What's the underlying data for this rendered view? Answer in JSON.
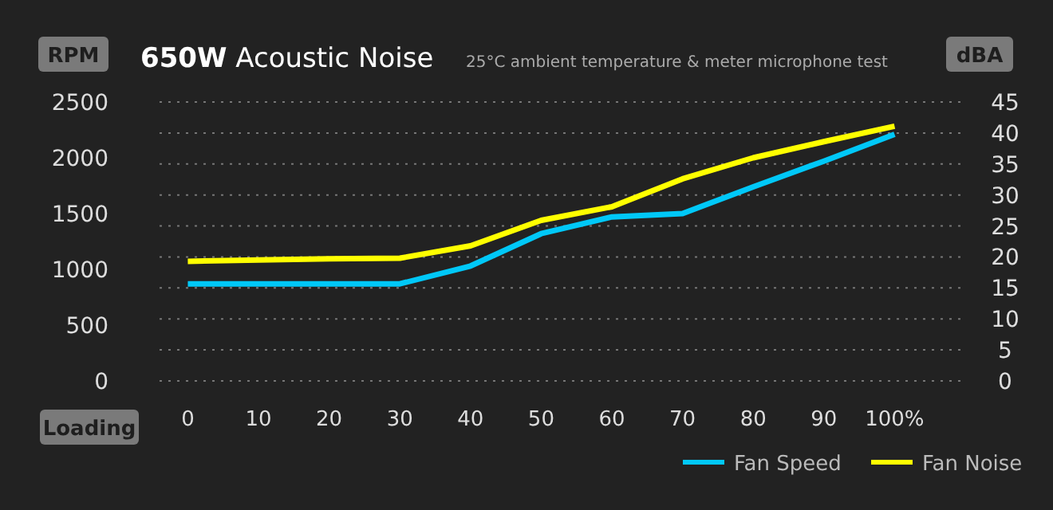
{
  "chart_data": {
    "type": "line",
    "title": "650W Acoustic Noise",
    "subtitle": "25°C ambient temperature & meter microphone test",
    "ylabel": "RPM",
    "y2label": "dBA",
    "xlabel": "Loading",
    "x": [
      0,
      10,
      20,
      30,
      40,
      50,
      60,
      70,
      80,
      90,
      100
    ],
    "series": [
      {
        "name": "Fan Speed",
        "color": "#00c8f8",
        "values": [
          870,
          870,
          870,
          870,
          1030,
          1320,
          1470,
          1500,
          1740,
          1970,
          2210
        ]
      },
      {
        "name": "Fan Noise",
        "color": "#ffff00",
        "axis": "y2",
        "values": [
          19.3,
          19.5,
          19.7,
          19.8,
          21.8,
          25.9,
          28.1,
          32.6,
          36.0,
          38.6,
          41.1
        ]
      }
    ],
    "xlim": [
      -4,
      110
    ],
    "xticks": [
      0,
      10,
      20,
      30,
      40,
      50,
      60,
      70,
      80,
      90,
      {
        "value": 100,
        "label": "100%"
      }
    ],
    "ylim": [
      0,
      2500
    ],
    "yticks": [
      0,
      500,
      1000,
      1500,
      2000,
      2500
    ],
    "y2lim": [
      0,
      45
    ],
    "y2ticks": [
      0,
      5,
      10,
      15,
      20,
      25,
      30,
      35,
      40,
      45
    ],
    "grid": "y",
    "legend": "bottom right",
    "marker": "none",
    "line_style": "solid"
  }
}
